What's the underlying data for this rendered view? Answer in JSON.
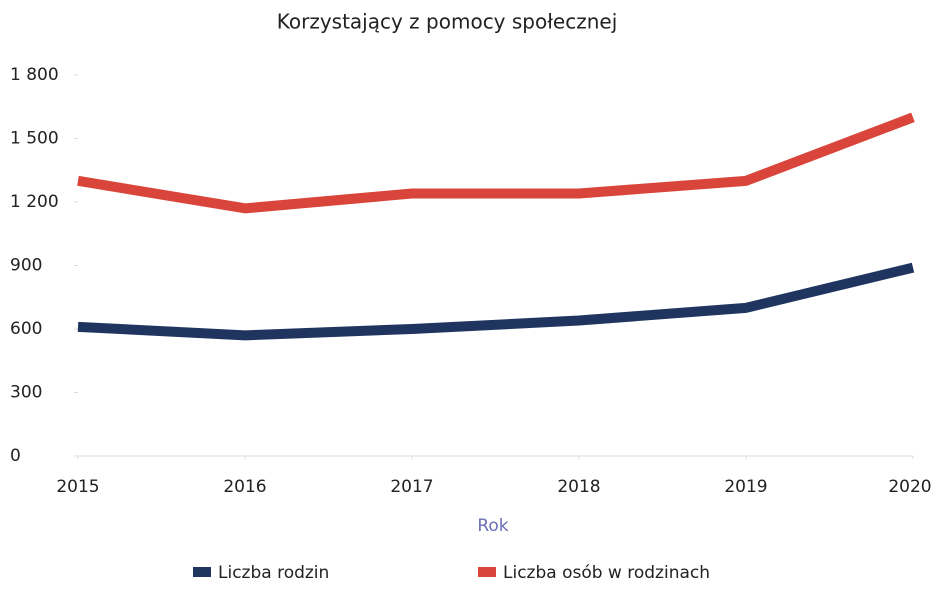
{
  "chart_data": {
    "type": "line",
    "title": "Korzystający z pomocy społecznej",
    "x_label": "Rok",
    "x": [
      2015,
      2016,
      2017,
      2018,
      2019,
      2020
    ],
    "xlim": [
      2015,
      2020
    ],
    "xticks": [
      2015,
      2016,
      2017,
      2018,
      2019,
      2020
    ],
    "ylim": [
      0,
      1800
    ],
    "yticks": [
      0,
      300,
      600,
      900,
      {
        "value": 1200,
        "label": "1 200"
      },
      {
        "value": 1500,
        "label": "1 500"
      },
      {
        "value": 1800,
        "label": "1 800"
      }
    ],
    "grid": false,
    "legend": "bottom",
    "series": [
      {
        "name": "Liczba rodzin",
        "color": "#1f3560",
        "values": [
          610,
          570,
          600,
          640,
          700,
          890
        ]
      },
      {
        "name": "Liczba osób w rodzinach",
        "color": "#d9453b",
        "values": [
          1300,
          1170,
          1240,
          1240,
          1300,
          1600
        ]
      }
    ]
  }
}
